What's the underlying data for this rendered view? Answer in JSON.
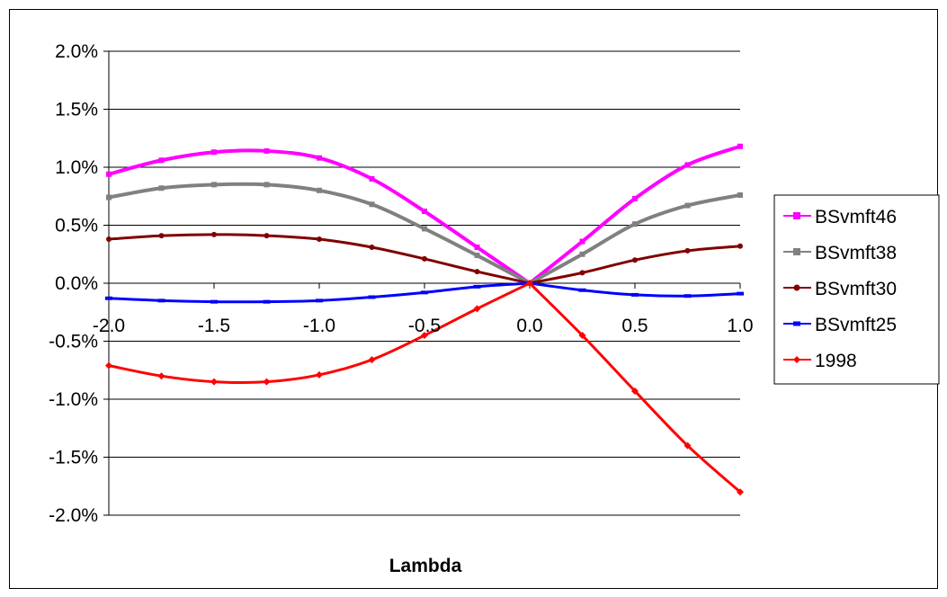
{
  "chart_data": {
    "type": "line",
    "title": "",
    "xlabel": "Lambda",
    "ylabel": "",
    "xlim": [
      -2.0,
      1.0
    ],
    "ylim": [
      -0.02,
      0.02
    ],
    "x_ticks": [
      "-2.0",
      "-1.5",
      "-1.0",
      "-0.5",
      "0.0",
      "0.5",
      "1.0"
    ],
    "y_ticks": [
      "2.0%",
      "1.5%",
      "1.0%",
      "0.5%",
      "0.0%",
      "-0.5%",
      "-1.0%",
      "-1.5%",
      "-2.0%"
    ],
    "grid": "horizontal",
    "legend_position": "right",
    "x": [
      -2.0,
      -1.75,
      -1.5,
      -1.25,
      -1.0,
      -0.75,
      -0.5,
      -0.25,
      0.0,
      0.25,
      0.5,
      0.75,
      1.0
    ],
    "series": [
      {
        "name": "BSvmft46",
        "color": "#ff00ff",
        "marker": "square",
        "values": [
          0.0094,
          0.0106,
          0.0113,
          0.0114,
          0.0108,
          0.009,
          0.0062,
          0.0031,
          0.0,
          0.0036,
          0.0073,
          0.0102,
          0.0118
        ]
      },
      {
        "name": "BSvmft38",
        "color": "#808080",
        "marker": "square",
        "values": [
          0.0074,
          0.0082,
          0.0085,
          0.0085,
          0.008,
          0.0068,
          0.0047,
          0.0024,
          0.0,
          0.0025,
          0.0051,
          0.0067,
          0.0076
        ]
      },
      {
        "name": "BSvmft30",
        "color": "#800000",
        "marker": "circle",
        "values": [
          0.0038,
          0.0041,
          0.0042,
          0.0041,
          0.0038,
          0.0031,
          0.0021,
          0.001,
          0.0,
          0.0009,
          0.002,
          0.0028,
          0.0032
        ]
      },
      {
        "name": "BSvmft25",
        "color": "#0000ff",
        "marker": "dash",
        "values": [
          -0.0013,
          -0.0015,
          -0.0016,
          -0.0016,
          -0.0015,
          -0.0012,
          -0.0008,
          -0.0003,
          0.0,
          -0.0006,
          -0.001,
          -0.0011,
          -0.0009
        ]
      },
      {
        "name": "1998",
        "color": "#ff0000",
        "marker": "diamond",
        "values": [
          -0.0071,
          -0.008,
          -0.0085,
          -0.0085,
          -0.0079,
          -0.0066,
          -0.0045,
          -0.0022,
          0.0,
          -0.0045,
          -0.0093,
          -0.014,
          -0.018
        ]
      }
    ]
  }
}
